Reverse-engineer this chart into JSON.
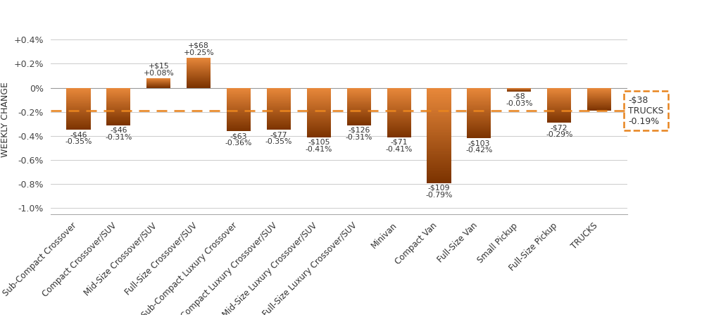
{
  "categories": [
    "Sub-Compact Crossover",
    "Compact Crossover/SUV",
    "Mid-Size Crossover/SUV",
    "Full-Size Crossover/SUV",
    "Sub-Compact Luxury Crossover",
    "Compact Luxury Crossover/SUV",
    "Mid-Size Luxury Crossover/SUV",
    "Full-Size Luxury Crossover/SUV",
    "Minivan",
    "Compact Van",
    "Full-Size Van",
    "Small Pickup",
    "Full-Size Pickup",
    "TRUCKS"
  ],
  "values_pct": [
    -0.35,
    -0.31,
    0.08,
    0.25,
    -0.36,
    -0.35,
    -0.41,
    -0.31,
    -0.41,
    -0.79,
    -0.42,
    -0.03,
    -0.29,
    -0.19
  ],
  "dollar_labels": [
    "-$46",
    "-$46",
    "+$15",
    "+$68",
    "-$63",
    "-$77",
    "-$105",
    "-$126",
    "-$71",
    "-$109",
    "-$103",
    "-$8",
    "-$72",
    "-$38"
  ],
  "pct_labels": [
    "-0.35%",
    "-0.31%",
    "+0.08%",
    "+0.25%",
    "-0.36%",
    "-0.35%",
    "-0.41%",
    "-0.31%",
    "-0.41%",
    "-0.79%",
    "-0.42%",
    "-0.03%",
    "-0.29%",
    "-0.19%"
  ],
  "color_top": "#e8883a",
  "color_bottom": "#7a3200",
  "dashed_line_y": -0.19,
  "dashed_line_color": "#e8841e",
  "background_color": "#ffffff",
  "ylabel": "WEEKLY CHANGE",
  "ylim": [
    -1.05,
    0.52
  ],
  "yticks": [
    -1.0,
    -0.8,
    -0.6,
    -0.4,
    -0.2,
    0.0,
    0.2,
    0.4
  ],
  "ytick_labels": [
    "-1.0%",
    "-0.8%",
    "-0.6%",
    "-0.4%",
    "-0.2%",
    "0%",
    "+0.2%",
    "+0.4%"
  ],
  "trucks_box_color": "#e8841e",
  "annotation_fontsize": 7.8,
  "bar_width": 0.6
}
